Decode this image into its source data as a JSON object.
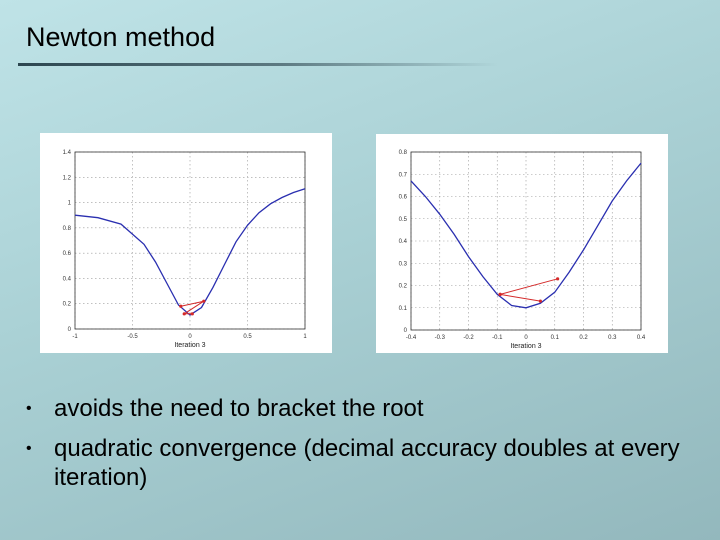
{
  "slide": {
    "title": "Newton method",
    "bullets": [
      "avoids the need to bracket the root",
      "quadratic convergence (decimal accuracy doubles at every iteration)"
    ]
  },
  "colors": {
    "curve": "#2a2fb0",
    "iterates": "#d42a2a"
  },
  "chart_data": [
    {
      "type": "line",
      "xlabel": "Iteration 3",
      "xlim": [
        -1,
        1
      ],
      "ylim": [
        0,
        1.4
      ],
      "xticks": [
        -1,
        -0.5,
        0,
        0.5,
        1
      ],
      "xtick_labels": [
        "-1",
        "-0.5",
        "0",
        "0.5",
        "1"
      ],
      "yticks": [
        0,
        0.2,
        0.4,
        0.6,
        0.8,
        1,
        1.2,
        1.4
      ],
      "ytick_labels": [
        "0",
        "0.2",
        "0.4",
        "0.6",
        "0.8",
        "1",
        "1.2",
        "1.4"
      ],
      "grid": true,
      "series": [
        {
          "x": [
            -1,
            -0.8,
            -0.6,
            -0.4,
            -0.3,
            -0.2,
            -0.1,
            0,
            0.1,
            0.2,
            0.3,
            0.4,
            0.5,
            0.6,
            0.7,
            0.8,
            0.9,
            1
          ],
          "y": [
            0.9,
            0.88,
            0.83,
            0.67,
            0.53,
            0.36,
            0.19,
            0.11,
            0.17,
            0.33,
            0.51,
            0.69,
            0.82,
            0.92,
            0.99,
            1.04,
            1.08,
            1.11
          ]
        }
      ],
      "iterates": {
        "x": [
          -0.08,
          0.12,
          -0.05,
          0.02
        ],
        "y": [
          0.18,
          0.22,
          0.12,
          0.12
        ]
      }
    },
    {
      "type": "line",
      "xlabel": "Iteration 3",
      "xlim": [
        -0.4,
        0.4
      ],
      "ylim": [
        0,
        0.8
      ],
      "xticks": [
        -0.4,
        -0.3,
        -0.2,
        -0.1,
        0,
        0.1,
        0.2,
        0.3,
        0.4
      ],
      "xtick_labels": [
        "-0.4",
        "-0.3",
        "-0.2",
        "-0.1",
        "0",
        "0.1",
        "0.2",
        "0.3",
        "0.4"
      ],
      "yticks": [
        0,
        0.1,
        0.2,
        0.3,
        0.4,
        0.5,
        0.6,
        0.7,
        0.8
      ],
      "ytick_labels": [
        "0",
        "0.1",
        "0.2",
        "0.3",
        "0.4",
        "0.5",
        "0.6",
        "0.7",
        "0.8"
      ],
      "grid": true,
      "series": [
        {
          "x": [
            -0.4,
            -0.35,
            -0.3,
            -0.25,
            -0.2,
            -0.15,
            -0.1,
            -0.05,
            0,
            0.05,
            0.1,
            0.15,
            0.2,
            0.25,
            0.3,
            0.35,
            0.4
          ],
          "y": [
            0.67,
            0.6,
            0.52,
            0.43,
            0.33,
            0.24,
            0.16,
            0.11,
            0.1,
            0.12,
            0.17,
            0.26,
            0.36,
            0.47,
            0.58,
            0.67,
            0.75
          ]
        }
      ],
      "iterates": {
        "x": [
          -0.09,
          0.11,
          -0.09,
          0.05
        ],
        "y": [
          0.16,
          0.23,
          0.16,
          0.13
        ]
      }
    }
  ]
}
